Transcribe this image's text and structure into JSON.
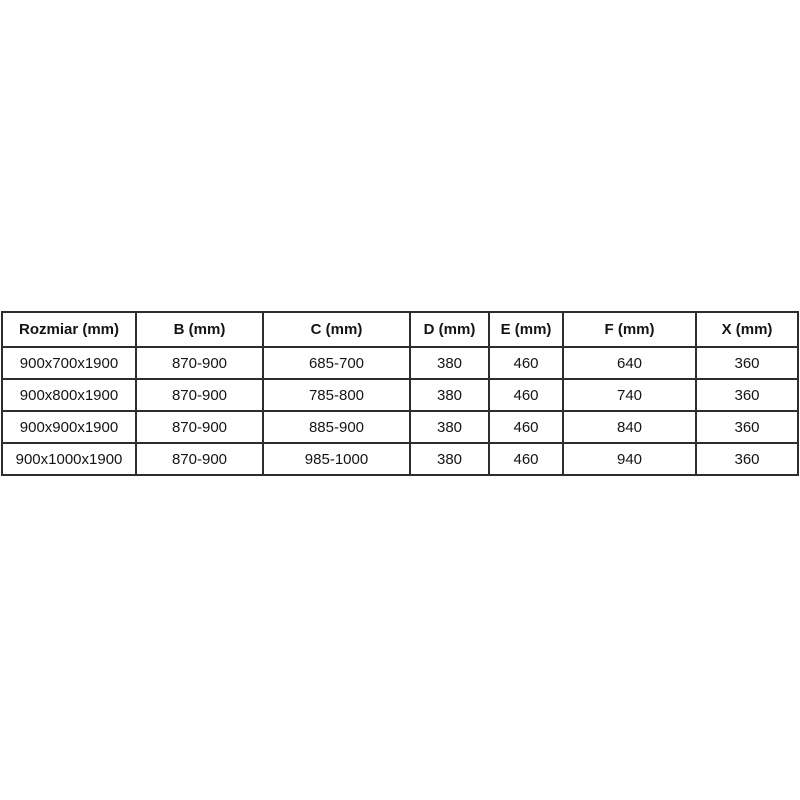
{
  "colors": {
    "background": "#ffffff",
    "table_border": "#2d2d2d",
    "text": "#141414"
  },
  "chart_data": {
    "type": "table",
    "columns": [
      "Rozmiar (mm)",
      "B (mm)",
      "C (mm)",
      "D (mm)",
      "E (mm)",
      "F (mm)",
      "X (mm)"
    ],
    "rows": [
      [
        "900x700x1900",
        "870-900",
        "685-700",
        "380",
        "460",
        "640",
        "360"
      ],
      [
        "900x800x1900",
        "870-900",
        "785-800",
        "380",
        "460",
        "740",
        "360"
      ],
      [
        "900x900x1900",
        "870-900",
        "885-900",
        "380",
        "460",
        "840",
        "360"
      ],
      [
        "900x1000x1900",
        "870-900",
        "985-1000",
        "380",
        "460",
        "940",
        "360"
      ]
    ]
  }
}
